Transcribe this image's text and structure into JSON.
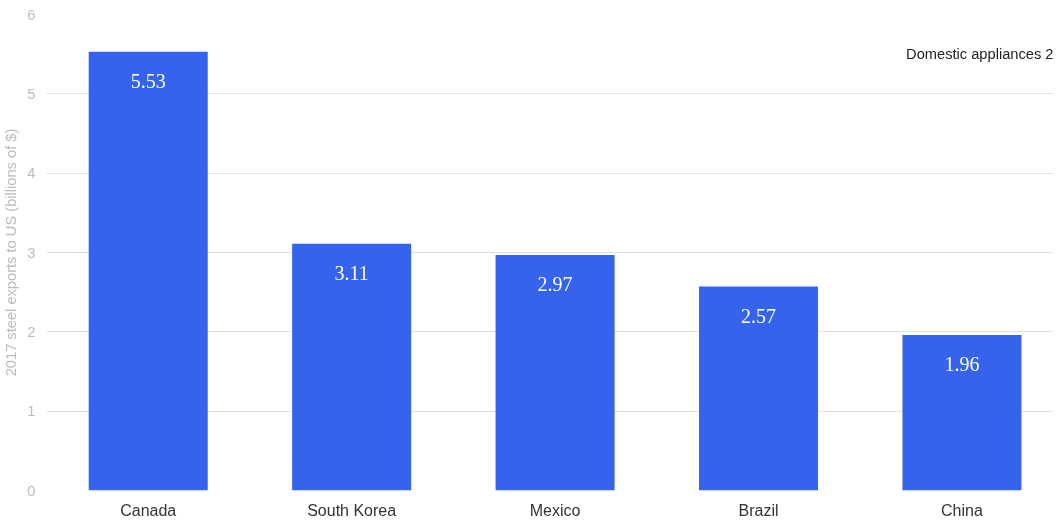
{
  "chart_data": {
    "type": "bar",
    "ylabel": "2017 steel exports to US (billions of $)",
    "categories": [
      "Canada",
      "South Korea",
      "Mexico",
      "Brazil",
      "China"
    ],
    "values": [
      5.53,
      3.11,
      2.97,
      2.57,
      1.96
    ],
    "color": "#3563ec",
    "ylim": [
      0,
      6
    ],
    "yticks": [
      0,
      1,
      2,
      3,
      4,
      5,
      6
    ],
    "grid": "y",
    "data_labels": true,
    "annotations": [
      "Domestic appliances 2"
    ]
  }
}
